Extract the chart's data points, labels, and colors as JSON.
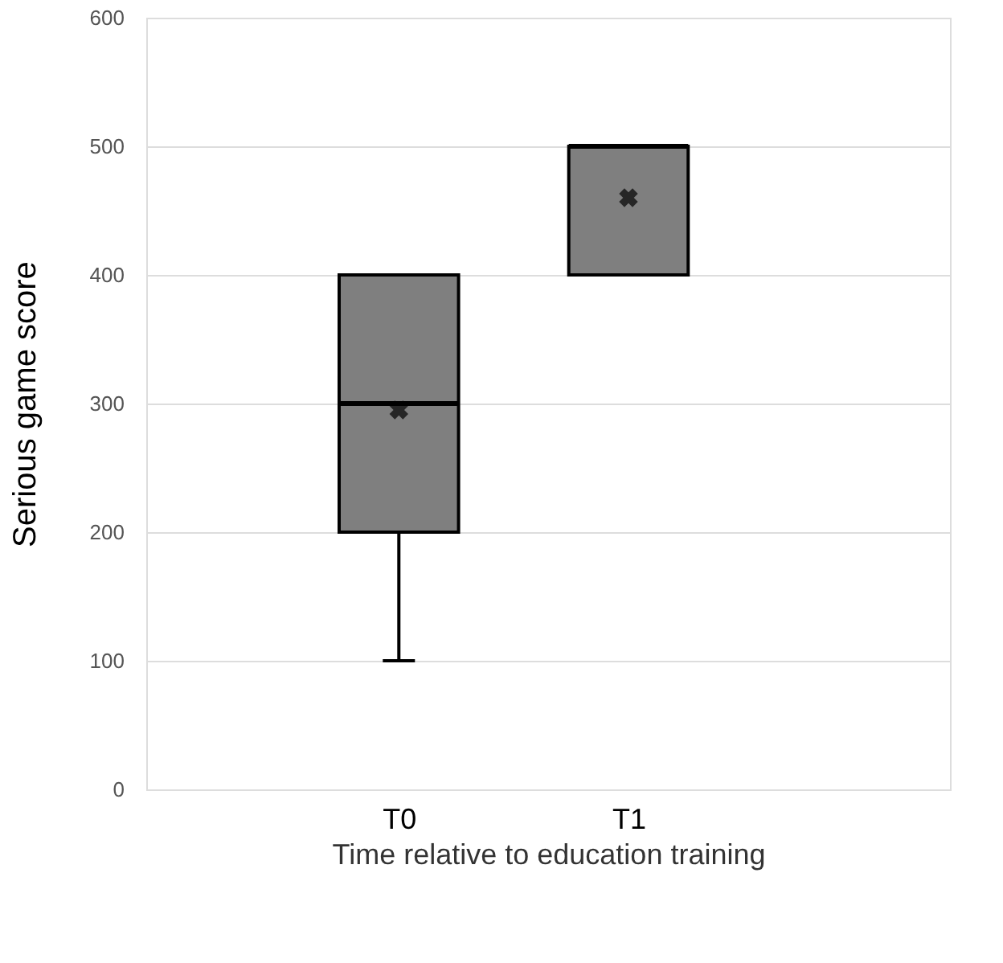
{
  "chart_data": {
    "type": "box",
    "xlabel": "Time relative to education training",
    "ylabel": "Serious game score",
    "categories": [
      "T0",
      "T1"
    ],
    "boxes": [
      {
        "low": 100,
        "q1": 200,
        "median": 300,
        "q3": 400,
        "high": 400,
        "mean": 295
      },
      {
        "low": 400,
        "q1": 400,
        "median": 500,
        "q3": 500,
        "high": 500,
        "mean": 460
      }
    ],
    "color": "#7f7f7f",
    "ylim": [
      0,
      600
    ],
    "yticks": [
      0,
      100,
      200,
      300,
      400,
      500,
      600
    ],
    "grid": "y"
  }
}
